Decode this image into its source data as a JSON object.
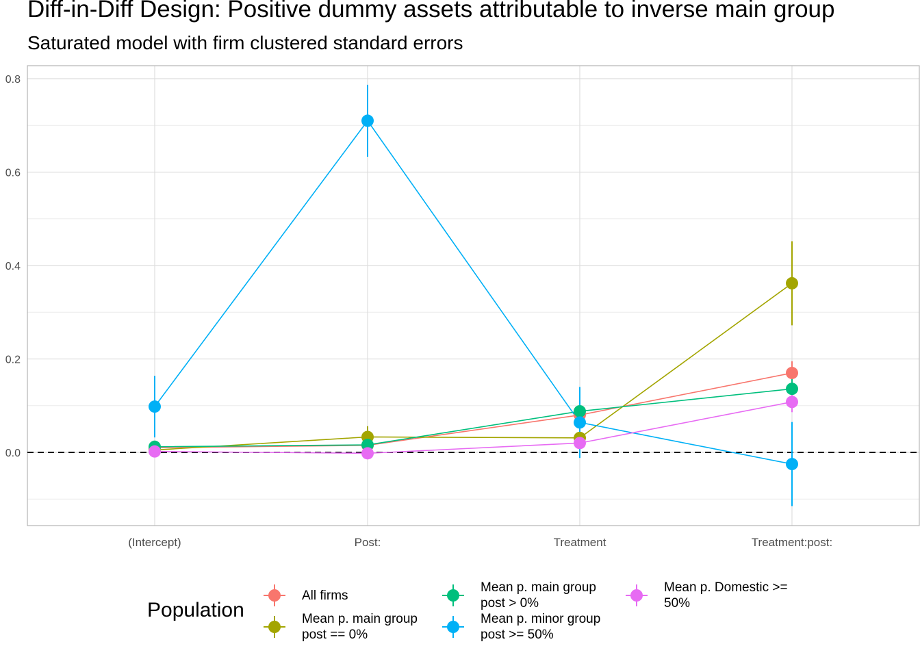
{
  "title": "Diff-in-Diff Design: Positive dummy assets attributable to inverse main group",
  "subtitle": "Saturated model with firm clustered standard errors",
  "legend_title": "Population",
  "chart_data": {
    "type": "line",
    "categories": [
      "(Intercept)",
      "Post:",
      "Treatment",
      "Treatment:post:"
    ],
    "ylim": [
      -0.16,
      0.82
    ],
    "yticks": [
      "0.0",
      "0.2",
      "0.4",
      "0.6",
      "0.8"
    ],
    "ytick_values": [
      0,
      0.2,
      0.4,
      0.6,
      0.8
    ],
    "grid": true,
    "reference_line": 0,
    "legend_position": "bottom",
    "series": [
      {
        "name": "All firms",
        "color": "#F8766D",
        "values": [
          0.01,
          0.015,
          0.08,
          0.17
        ],
        "ci_low": [
          0.004,
          0.008,
          0.065,
          0.145
        ],
        "ci_high": [
          0.016,
          0.022,
          0.095,
          0.195
        ]
      },
      {
        "name": "Mean p. main group\npost == 0%",
        "color": "#A3A500",
        "values": [
          0.005,
          0.033,
          0.031,
          0.362
        ],
        "ci_low": [
          -0.003,
          0.012,
          0.008,
          0.272
        ],
        "ci_high": [
          0.013,
          0.056,
          0.054,
          0.452
        ]
      },
      {
        "name": "Mean p. main group\npost > 0%",
        "color": "#00BF7D",
        "values": [
          0.012,
          0.016,
          0.088,
          0.136
        ],
        "ci_low": [
          0.005,
          0.009,
          0.072,
          0.112
        ],
        "ci_high": [
          0.019,
          0.023,
          0.104,
          0.16
        ]
      },
      {
        "name": "Mean p. minor group\npost >= 50%",
        "color": "#00B0F6",
        "values": [
          0.098,
          0.71,
          0.064,
          -0.025
        ],
        "ci_low": [
          0.032,
          0.633,
          -0.012,
          -0.115
        ],
        "ci_high": [
          0.164,
          0.787,
          0.14,
          0.065
        ]
      },
      {
        "name": "Mean p. Domestic >=\n50%",
        "color": "#E76BF3",
        "values": [
          0.002,
          -0.002,
          0.02,
          0.108
        ],
        "ci_low": [
          -0.004,
          -0.008,
          0.008,
          0.086
        ],
        "ci_high": [
          0.008,
          0.004,
          0.032,
          0.13
        ]
      }
    ]
  }
}
